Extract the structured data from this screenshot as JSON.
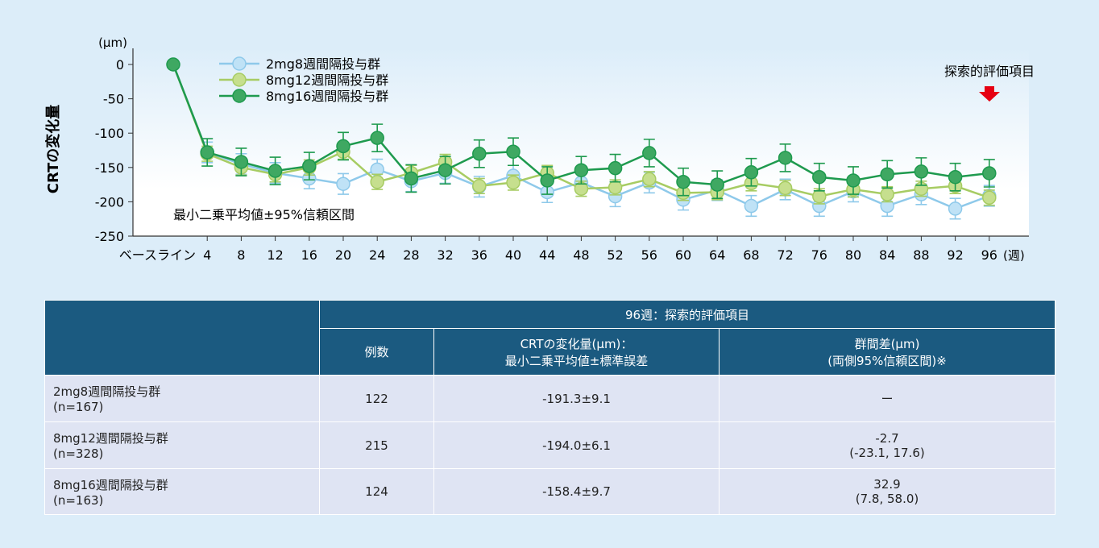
{
  "chart_data": {
    "type": "line",
    "ylabel": "CRTの変化量",
    "yunit": "(μm)",
    "xunit": "(週)",
    "ylim": [
      -250,
      0
    ],
    "yticks": [
      0,
      -50,
      -100,
      -150,
      -200,
      -250
    ],
    "x_labels": [
      "ベースライン",
      "4",
      "8",
      "12",
      "16",
      "20",
      "24",
      "28",
      "32",
      "36",
      "40",
      "44",
      "48",
      "52",
      "56",
      "60",
      "64",
      "68",
      "72",
      "76",
      "80",
      "84",
      "88",
      "92",
      "96"
    ],
    "annotation": "最小二乗平均値±95%信頼区間",
    "marker_note": "探索的評価項目",
    "series": [
      {
        "name": "2mg8週間隔投与群",
        "color": "#8ec9ea",
        "fill": "#bfe2f6",
        "ci": 15,
        "values": [
          0,
          -128,
          -145,
          -158,
          -166,
          -174,
          -153,
          -170,
          -158,
          -178,
          -162,
          -186,
          -172,
          -192,
          -172,
          -197,
          -183,
          -206,
          -182,
          -206,
          -185,
          -206,
          -189,
          -210,
          -191.3
        ]
      },
      {
        "name": "8mg12週間隔投与群",
        "color": "#a7cc63",
        "fill": "#c6df8e",
        "ci": 11,
        "values": [
          0,
          -130,
          -150,
          -160,
          -150,
          -127,
          -171,
          -158,
          -142,
          -177,
          -172,
          -158,
          -181,
          -179,
          -167,
          -187,
          -186,
          -173,
          -180,
          -192,
          -182,
          -189,
          -181,
          -177,
          -194.0
        ]
      },
      {
        "name": "8mg16週間隔投与群",
        "color": "#1e9a4e",
        "fill": "#3fa862",
        "ci": 20,
        "values": [
          0,
          -128,
          -142,
          -155,
          -148,
          -119,
          -107,
          -166,
          -154,
          -130,
          -127,
          -169,
          -154,
          -151,
          -129,
          -171,
          -175,
          -157,
          -136,
          -164,
          -169,
          -160,
          -156,
          -164,
          -158.4
        ]
      }
    ]
  },
  "table": {
    "header_span": "96週：探索的評価項目",
    "col_n": "例数",
    "col_crt": [
      "CRTの変化量(μm)：",
      "最小二乗平均値±標準誤差"
    ],
    "col_diff": [
      "群間差(μm)",
      "(両側95%信頼区間)※"
    ],
    "rows": [
      {
        "group": "2mg8週間隔投与群",
        "n_total": "(n=167)",
        "n": "122",
        "crt": "-191.3±9.1",
        "diff": "ー",
        "ci": ""
      },
      {
        "group": "8mg12週間隔投与群",
        "n_total": "(n=328)",
        "n": "215",
        "crt": "-194.0±6.1",
        "diff": "-2.7",
        "ci": "(-23.1, 17.6)"
      },
      {
        "group": "8mg16週間隔投与群",
        "n_total": "(n=163)",
        "n": "124",
        "crt": "-158.4±9.7",
        "diff": "32.9",
        "ci": "(7.8, 58.0)"
      }
    ]
  }
}
